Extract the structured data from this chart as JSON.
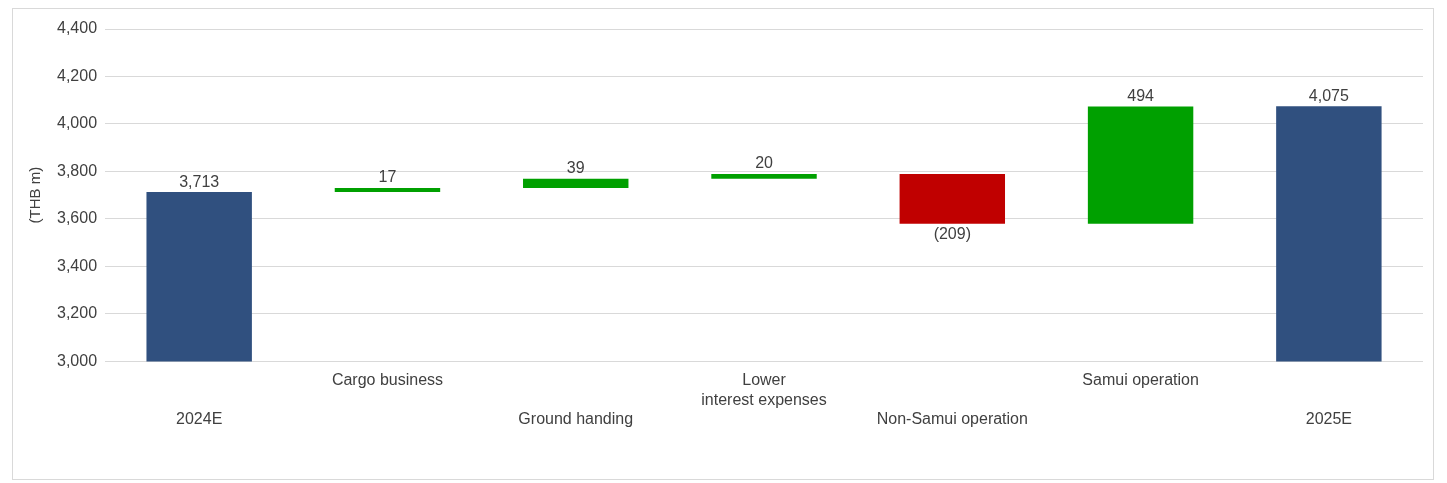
{
  "chart_data": {
    "type": "bar",
    "ylabel": "(THB m)",
    "categories": [
      "2024E",
      "Cargo business",
      "Ground handing",
      "Lower\ninterest expenses",
      "Non-Samui operation",
      "Samui operation",
      "2025E"
    ],
    "values": [
      3713,
      17,
      39,
      20,
      -209,
      494,
      4075
    ],
    "base": [
      null,
      3713,
      3730,
      3769,
      3789,
      3580,
      null
    ],
    "colors": [
      "#30507f",
      "#00a000",
      "#00a000",
      "#00a000",
      "#c00000",
      "#00a000",
      "#30507f"
    ],
    "value_labels": [
      "3,713",
      "17",
      "39",
      "20",
      "(209)",
      "494",
      "4,075"
    ],
    "ylim": [
      3000,
      4400
    ],
    "yticks": [
      {
        "value": 3000,
        "label": "3,000"
      },
      {
        "value": 3200,
        "label": "3,200"
      },
      {
        "value": 3400,
        "label": "3,400"
      },
      {
        "value": 3600,
        "label": "3,600"
      },
      {
        "value": 3800,
        "label": "3,800"
      },
      {
        "value": 4000,
        "label": "4,000"
      },
      {
        "value": 4200,
        "label": "4,200"
      },
      {
        "value": 4400,
        "label": "4,400"
      }
    ],
    "grid": "y"
  }
}
